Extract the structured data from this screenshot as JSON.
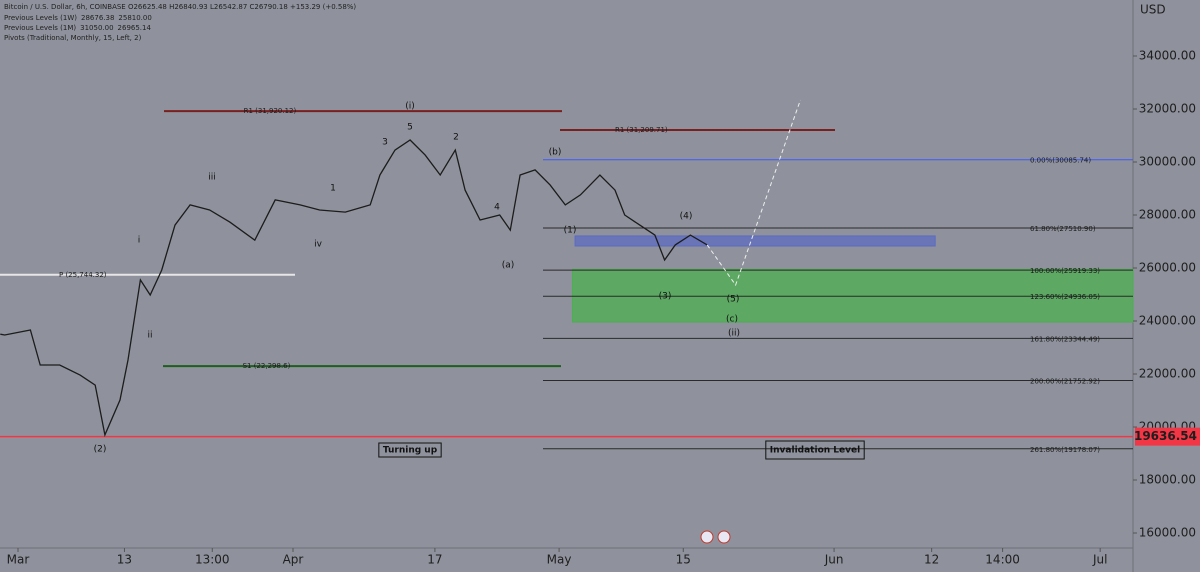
{
  "chart_data": {
    "type": "line",
    "title": "Bitcoin / U.S. Dollar, 6h, COINBASE O26625.48 H26840.93 L26542.87 C26790.18 +153.29 (+0.58%)",
    "indicators": [
      {
        "label": "Previous Levels (1W)",
        "values": [
          "28676.38",
          "25810.00"
        ],
        "color": "#b146c2"
      },
      {
        "label": "Previous Levels (1M)",
        "values": [
          "31050.00",
          "26965.14"
        ],
        "color": "#f0e04a"
      },
      {
        "label": "Pivots (Traditional, Monthly, 15, Left, 2)"
      }
    ],
    "y_axis_label": "USD",
    "ylim": [
      15434,
      36113
    ],
    "yticks": [
      {
        "value": 16000,
        "label": "16000.00"
      },
      {
        "value": 18000,
        "label": "18000.00"
      },
      {
        "value": 20000,
        "label": "20000.00"
      },
      {
        "value": 22000,
        "label": "22000.00"
      },
      {
        "value": 24000,
        "label": "24000.00"
      },
      {
        "value": 26000,
        "label": "26000.00"
      },
      {
        "value": 28000,
        "label": "28000.00"
      },
      {
        "value": 30000,
        "label": "30000.00"
      },
      {
        "value": 32000,
        "label": "32000.00"
      },
      {
        "value": 34000,
        "label": "34000.00"
      }
    ],
    "xlim": [
      -2.03,
      125.7
    ],
    "xticks": [
      {
        "value": 0,
        "label": "Mar"
      },
      {
        "value": 12,
        "label": "13"
      },
      {
        "value": 21.9,
        "label": "13:00"
      },
      {
        "value": 31,
        "label": "Apr"
      },
      {
        "value": 47,
        "label": "17"
      },
      {
        "value": 61,
        "label": "May"
      },
      {
        "value": 75,
        "label": "15"
      },
      {
        "value": 92,
        "label": "Jun"
      },
      {
        "value": 103,
        "label": "12"
      },
      {
        "value": 111,
        "label": "14:00"
      },
      {
        "value": 122,
        "label": "Jul"
      }
    ],
    "series": [
      {
        "name": "BTCUSD",
        "color": "#1c1c1c",
        "x": [
          -2.0,
          -1.5,
          1.4,
          2.5,
          4.7,
          7.0,
          8.7,
          9.8,
          11.5,
          12.4,
          13.8,
          14.9,
          16.2,
          17.7,
          19.4,
          21.6,
          23.9,
          26.7,
          29.0,
          31.8,
          34.0,
          36.9,
          39.7,
          40.8,
          42.5,
          44.2,
          45.9,
          47.6,
          49.3,
          50.4,
          52.1,
          54.3,
          55.5,
          56.6,
          58.3,
          60.0,
          61.7,
          63.4,
          65.6,
          67.3,
          68.4,
          70.1,
          71.8,
          72.9,
          74.1,
          75.8,
          77.7
        ],
        "values": [
          23500,
          23470,
          23660,
          22340,
          22340,
          21960,
          21580,
          19700,
          21020,
          22530,
          25550,
          24980,
          25920,
          27620,
          28380,
          28190,
          27730,
          27050,
          28570,
          28380,
          28190,
          28110,
          28380,
          29510,
          30450,
          30830,
          30260,
          29510,
          30450,
          28940,
          27810,
          28000,
          27430,
          29510,
          29700,
          29130,
          28380,
          28760,
          29510,
          28940,
          28000,
          27620,
          27240,
          26300,
          26870,
          27240,
          26870
        ]
      }
    ],
    "projection": {
      "color": "#eeeeee",
      "x": [
        77.7,
        80.9,
        88.2
      ],
      "values": [
        26870,
        25360,
        32340
      ]
    },
    "price_tag": {
      "value": 19636.54,
      "label": "19636.54",
      "color": "#f23645"
    },
    "fib_levels": [
      {
        "value": 30085.74,
        "label": "0.00%(30085.74)",
        "color": "#3d5afe"
      },
      {
        "value": 27510.9,
        "label": "61.80%(27510.90)",
        "color": "#2a2a2a"
      },
      {
        "value": 25919.33,
        "label": "100.00%(25919.33)",
        "color": "#2a2a2a"
      },
      {
        "value": 24936.05,
        "label": "123.60%(24936.05)",
        "color": "#2a2a2a"
      },
      {
        "value": 23344.49,
        "label": "161.80%(23344.49)",
        "color": "#2a2a2a"
      },
      {
        "value": 21752.92,
        "label": "200.00%(21752.92)",
        "color": "#2a2a2a"
      },
      {
        "value": 19178.07,
        "label": "261.80%(19178.07)",
        "color": "#2a2a2a"
      }
    ],
    "pivots": [
      {
        "value": 31920.12,
        "label": "R1 (31,920.12)",
        "color": "#7a1f1f"
      },
      {
        "value": 31209.71,
        "label": "R1 (31,209.71)",
        "color": "#7a1f1f"
      },
      {
        "value": 25744.32,
        "label": "P (25,744.32)",
        "color": "#e6e6e6"
      },
      {
        "value": 22298.6,
        "label": "S1 (22,298.6)",
        "color": "#1e5e1e"
      }
    ],
    "zones": [
      {
        "color": "#4caf50",
        "y": [
          25950,
          23960
        ],
        "x": [
          62.5,
          125.7
        ]
      },
      {
        "color": "#5c6bc0",
        "y": [
          27210,
          26830
        ],
        "x": [
          62.8,
          103.4
        ]
      }
    ],
    "annotations": [
      "(i)",
      "(2)",
      "(b)",
      "(a)",
      "(c)",
      "(ii)",
      "iii",
      "iv",
      "ii",
      "i",
      "Turning up",
      "Invalidation Level",
      "(4)",
      "(5)",
      "(3)",
      "(1)",
      "5",
      "3",
      "1",
      "2",
      "4"
    ]
  }
}
